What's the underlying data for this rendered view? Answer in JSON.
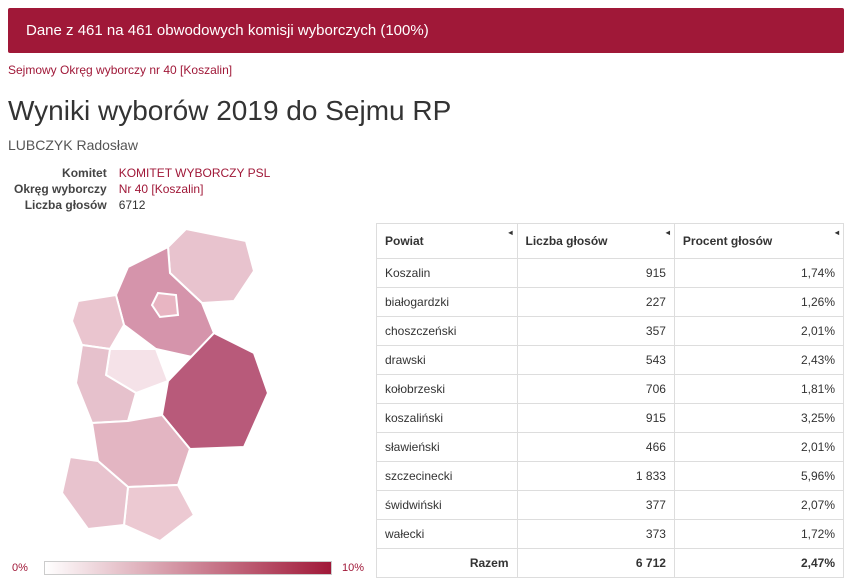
{
  "banner": "Dane z 461 na 461 obwodowych komisji wyborczych (100%)",
  "breadcrumb": "Sejmowy Okręg wyborczy nr 40 [Koszalin]",
  "title": "Wyniki wyborów 2019 do Sejmu RP",
  "candidate": "LUBCZYK Radosław",
  "info": {
    "labels": {
      "komitet": "Komitet",
      "okreg": "Okręg wyborczy",
      "glosow": "Liczba głosów"
    },
    "komitet": "KOMITET WYBORCZY PSL",
    "okreg": "Nr 40 [Koszalin]",
    "glosow": "6712"
  },
  "legend": {
    "min": "0%",
    "max": "10%"
  },
  "map": {
    "colors": {
      "Koszalin": "#e8b5c2",
      "bialogardzki": "#f5e2e8",
      "choszczenski": "#e8c3ce",
      "drawski": "#e3b5c2",
      "kolobrzeski": "#eac5cf",
      "koszalinski": "#d594ab",
      "slawienski": "#e8c3ce",
      "szczecinecki": "#b85a7a",
      "swidwinski": "#e6c1cc",
      "walecki": "#ecc9d2"
    }
  },
  "table": {
    "headers": {
      "powiat": "Powiat",
      "glosow": "Liczba głosów",
      "procent": "Procent głosów"
    },
    "rows": [
      {
        "powiat": "Koszalin",
        "glosow": "915",
        "procent": "1,74%"
      },
      {
        "powiat": "białogardzki",
        "glosow": "227",
        "procent": "1,26%"
      },
      {
        "powiat": "choszczeński",
        "glosow": "357",
        "procent": "2,01%"
      },
      {
        "powiat": "drawski",
        "glosow": "543",
        "procent": "2,43%"
      },
      {
        "powiat": "kołobrzeski",
        "glosow": "706",
        "procent": "1,81%"
      },
      {
        "powiat": "koszaliński",
        "glosow": "915",
        "procent": "3,25%"
      },
      {
        "powiat": "sławieński",
        "glosow": "466",
        "procent": "2,01%"
      },
      {
        "powiat": "szczecinecki",
        "glosow": "1 833",
        "procent": "5,96%"
      },
      {
        "powiat": "świdwiński",
        "glosow": "377",
        "procent": "2,07%"
      },
      {
        "powiat": "wałecki",
        "glosow": "373",
        "procent": "1,72%"
      }
    ],
    "total": {
      "label": "Razem",
      "glosow": "6 712",
      "procent": "2,47%"
    }
  }
}
